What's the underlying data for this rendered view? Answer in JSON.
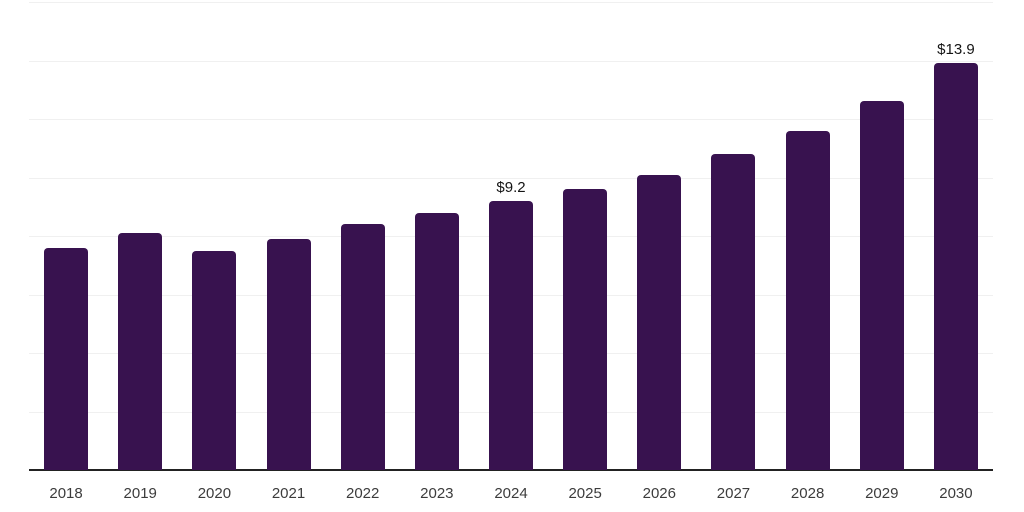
{
  "chart": {
    "background_color": "#ffffff",
    "bar_color": "#38124f",
    "gridline_color": "#f0f0f0",
    "axis_line_color": "#222222",
    "tick_label_color": "#3c3c3c",
    "data_label_color": "#141414"
  },
  "chart_data": {
    "type": "bar",
    "title": "",
    "xlabel": "",
    "ylabel": "",
    "categories": [
      "2018",
      "2019",
      "2020",
      "2021",
      "2022",
      "2023",
      "2024",
      "2025",
      "2026",
      "2027",
      "2028",
      "2029",
      "2030"
    ],
    "values": [
      7.6,
      8.1,
      7.5,
      7.9,
      8.4,
      8.8,
      9.2,
      9.6,
      10.1,
      10.8,
      11.6,
      12.6,
      13.9
    ],
    "data_labels": [
      {
        "category": "2024",
        "text": "$9.2"
      },
      {
        "category": "2030",
        "text": "$13.9"
      }
    ],
    "ylim": [
      0,
      16
    ],
    "gridline_step": 2,
    "grid": true,
    "legend": "none",
    "y_tick_labels_visible": false
  }
}
